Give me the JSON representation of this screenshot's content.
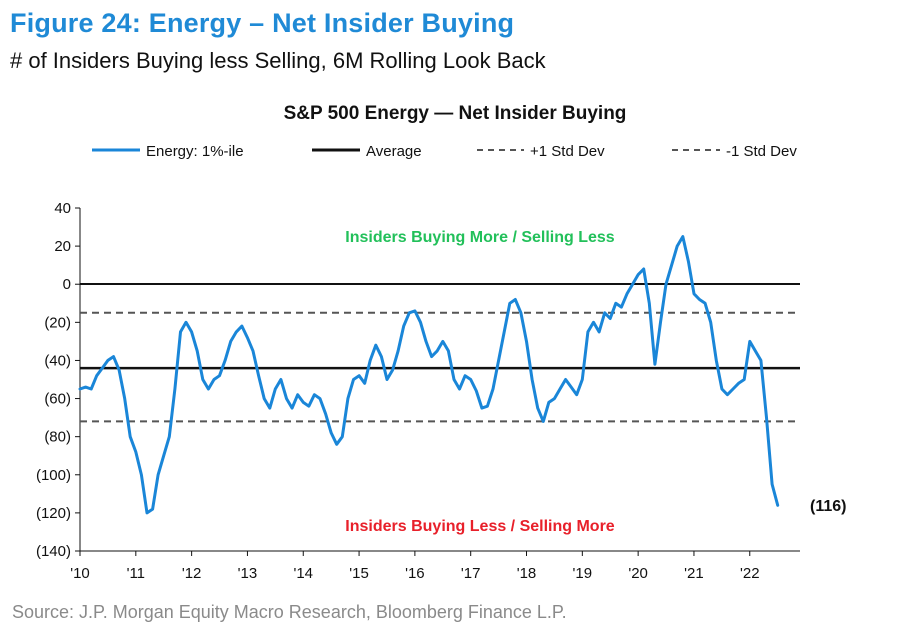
{
  "figure": {
    "title": "Figure 24: Energy – Net Insider Buying",
    "subtitle": "# of Insiders Buying less Selling, 6M Rolling Look Back",
    "source": "Source: J.P. Morgan Equity Macro Research, Bloomberg Finance L.P."
  },
  "colors": {
    "accent": "#1f8ad6",
    "series": "#1a86d8",
    "average": "#111111",
    "stddev": "#555555",
    "up": "#22c05a",
    "down": "#e8202a"
  },
  "chart_data": {
    "type": "line",
    "title": "S&P 500 Energy — Net Insider Buying",
    "legend": {
      "placement": "top",
      "entries": [
        {
          "label": "Energy: 1%-ile",
          "style": "solid-blue"
        },
        {
          "label": "Average",
          "style": "solid-black"
        },
        {
          "label": "+1 Std Dev",
          "style": "dashed"
        },
        {
          "label": "-1 Std Dev",
          "style": "dashed"
        }
      ]
    },
    "ylim": [
      -140,
      40
    ],
    "xlim": [
      2010.0,
      2022.9
    ],
    "grid": false,
    "y_ticks": [
      {
        "value": 40,
        "label": "40"
      },
      {
        "value": 20,
        "label": "20"
      },
      {
        "value": 0,
        "label": "0"
      },
      {
        "value": -20,
        "label": "(20)"
      },
      {
        "value": -40,
        "label": "(40)"
      },
      {
        "value": -60,
        "label": "(60)"
      },
      {
        "value": -80,
        "label": "(80)"
      },
      {
        "value": -100,
        "label": "(100)"
      },
      {
        "value": -120,
        "label": "(120)"
      },
      {
        "value": -140,
        "label": "(140)"
      }
    ],
    "x_ticks": [
      {
        "value": 2010,
        "label": "'10"
      },
      {
        "value": 2011,
        "label": "'11"
      },
      {
        "value": 2012,
        "label": "'12"
      },
      {
        "value": 2013,
        "label": "'13"
      },
      {
        "value": 2014,
        "label": "'14"
      },
      {
        "value": 2015,
        "label": "'15"
      },
      {
        "value": 2016,
        "label": "'16"
      },
      {
        "value": 2017,
        "label": "'17"
      },
      {
        "value": 2018,
        "label": "'18"
      },
      {
        "value": 2019,
        "label": "'19"
      },
      {
        "value": 2020,
        "label": "'20"
      },
      {
        "value": 2021,
        "label": "'21"
      },
      {
        "value": 2022,
        "label": "'22"
      }
    ],
    "reference_lines": [
      {
        "name": "Average",
        "value": -44,
        "style": "solid"
      },
      {
        "name": "+1 Std Dev",
        "value": -15,
        "style": "dashed"
      },
      {
        "name": "-1 Std Dev",
        "value": -72,
        "style": "dashed"
      }
    ],
    "zone_labels": {
      "upper": "Insiders Buying More / Selling Less",
      "lower": "Insiders Buying Less / Selling More"
    },
    "end_label": "(116)",
    "series": [
      {
        "name": "Energy: 1%-ile",
        "x": [
          2010.0,
          2010.1,
          2010.2,
          2010.3,
          2010.4,
          2010.5,
          2010.6,
          2010.7,
          2010.8,
          2010.9,
          2011.0,
          2011.1,
          2011.2,
          2011.3,
          2011.4,
          2011.5,
          2011.6,
          2011.7,
          2011.8,
          2011.9,
          2012.0,
          2012.1,
          2012.2,
          2012.3,
          2012.4,
          2012.5,
          2012.6,
          2012.7,
          2012.8,
          2012.9,
          2013.0,
          2013.1,
          2013.2,
          2013.3,
          2013.4,
          2013.5,
          2013.6,
          2013.7,
          2013.8,
          2013.9,
          2014.0,
          2014.1,
          2014.2,
          2014.3,
          2014.4,
          2014.5,
          2014.6,
          2014.7,
          2014.8,
          2014.9,
          2015.0,
          2015.1,
          2015.2,
          2015.3,
          2015.4,
          2015.5,
          2015.6,
          2015.7,
          2015.8,
          2015.9,
          2016.0,
          2016.1,
          2016.2,
          2016.3,
          2016.4,
          2016.5,
          2016.6,
          2016.7,
          2016.8,
          2016.9,
          2017.0,
          2017.1,
          2017.2,
          2017.3,
          2017.4,
          2017.5,
          2017.6,
          2017.7,
          2017.8,
          2017.9,
          2018.0,
          2018.1,
          2018.2,
          2018.3,
          2018.4,
          2018.5,
          2018.6,
          2018.7,
          2018.8,
          2018.9,
          2019.0,
          2019.1,
          2019.2,
          2019.3,
          2019.4,
          2019.5,
          2019.6,
          2019.7,
          2019.8,
          2019.9,
          2020.0,
          2020.1,
          2020.2,
          2020.3,
          2020.4,
          2020.5,
          2020.6,
          2020.7,
          2020.8,
          2020.9,
          2021.0,
          2021.1,
          2021.2,
          2021.3,
          2021.4,
          2021.5,
          2021.6,
          2021.7,
          2021.8,
          2021.9,
          2022.0,
          2022.1,
          2022.2,
          2022.3,
          2022.4,
          2022.5
        ],
        "values": [
          -55,
          -54,
          -55,
          -48,
          -44,
          -40,
          -38,
          -45,
          -60,
          -80,
          -88,
          -100,
          -120,
          -118,
          -100,
          -90,
          -80,
          -55,
          -25,
          -20,
          -25,
          -35,
          -50,
          -55,
          -50,
          -48,
          -40,
          -30,
          -25,
          -22,
          -28,
          -35,
          -48,
          -60,
          -65,
          -55,
          -50,
          -60,
          -65,
          -58,
          -62,
          -64,
          -58,
          -60,
          -68,
          -78,
          -84,
          -80,
          -60,
          -50,
          -48,
          -52,
          -40,
          -32,
          -38,
          -50,
          -45,
          -35,
          -22,
          -15,
          -14,
          -20,
          -30,
          -38,
          -35,
          -30,
          -35,
          -50,
          -55,
          -48,
          -50,
          -56,
          -65,
          -64,
          -55,
          -40,
          -25,
          -10,
          -8,
          -15,
          -30,
          -50,
          -65,
          -72,
          -62,
          -60,
          -55,
          -50,
          -54,
          -58,
          -50,
          -25,
          -20,
          -25,
          -15,
          -18,
          -10,
          -12,
          -5,
          0,
          5,
          8,
          -10,
          -42,
          -20,
          0,
          10,
          20,
          25,
          12,
          -5,
          -8,
          -10,
          -20,
          -40,
          -55,
          -58,
          -55,
          -52,
          -50,
          -30,
          -35,
          -40,
          -70,
          -105,
          -116
        ]
      }
    ]
  }
}
